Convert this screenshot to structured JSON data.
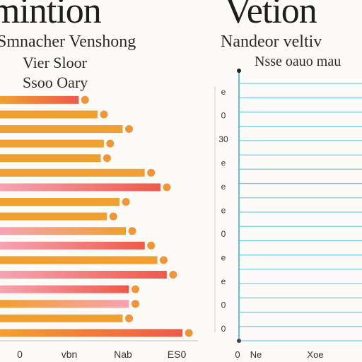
{
  "titles": {
    "left_title": "mintion",
    "right_title": "Vetion"
  },
  "chart_data": [
    {
      "type": "bar",
      "orientation": "horizontal",
      "title": "Smnacher Venshong",
      "subtitle_1": "Vier Sloor",
      "subtitle_2": "Ssoo Oary",
      "x_tick_labels": [
        "0",
        "vbn",
        "Nab",
        "ES0"
      ],
      "legend": "none",
      "grid": false,
      "colors": {
        "orange": "#f0a030",
        "red": "#ee5a4a",
        "pink": "#f7a3b3",
        "dot": "#ee8a22"
      },
      "series": [
        {
          "colors": [
            "orange",
            "red"
          ],
          "value": 0.25
        },
        {
          "colors": [
            "orange",
            "orange"
          ],
          "value": 0.31
        },
        {
          "colors": [
            "orange",
            "orange"
          ],
          "value": 0.39
        },
        {
          "colors": [
            "orange",
            "orange"
          ],
          "value": 0.33
        },
        {
          "colors": [
            "orange",
            "orange"
          ],
          "value": 0.32
        },
        {
          "colors": [
            "orange",
            "orange"
          ],
          "value": 0.46
        },
        {
          "colors": [
            "pink",
            "red"
          ],
          "value": 0.51
        },
        {
          "colors": [
            "orange",
            "orange"
          ],
          "value": 0.38
        },
        {
          "colors": [
            "orange",
            "orange"
          ],
          "value": 0.34
        },
        {
          "colors": [
            "pink",
            "orange"
          ],
          "value": 0.4
        },
        {
          "colors": [
            "pink",
            "red"
          ],
          "value": 0.46
        },
        {
          "colors": [
            "orange",
            "orange"
          ],
          "value": 0.5
        },
        {
          "colors": [
            "pink",
            "red"
          ],
          "value": 0.53
        },
        {
          "colors": [
            "pink",
            "red"
          ],
          "value": 0.41
        },
        {
          "colors": [
            "orange",
            "pink"
          ],
          "value": 0.41
        },
        {
          "colors": [
            "orange",
            "orange"
          ],
          "value": 0.39
        },
        {
          "colors": [
            "orange",
            "red"
          ],
          "value": 0.58
        }
      ]
    },
    {
      "type": "line",
      "title": "Nandeor veltiv",
      "subtitle": "Nsse oauo mau",
      "y_tick_labels": [
        "e",
        "0",
        "30",
        "e",
        "e",
        "e",
        "0",
        "e",
        "e",
        "0",
        "0"
      ],
      "x_tick_labels": [
        "0",
        "Ne",
        "Xoe"
      ],
      "grid": true,
      "line_color": "#5fc4e0",
      "gridline_count": 19
    }
  ]
}
